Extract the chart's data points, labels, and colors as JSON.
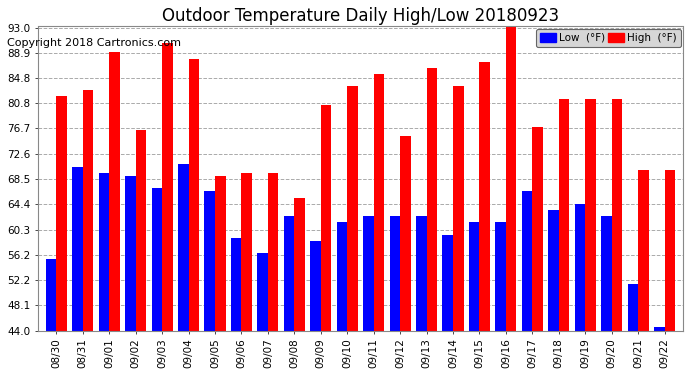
{
  "title": "Outdoor Temperature Daily High/Low 20180923",
  "copyright": "Copyright 2018 Cartronics.com",
  "dates": [
    "08/30",
    "08/31",
    "09/01",
    "09/02",
    "09/03",
    "09/04",
    "09/05",
    "09/06",
    "09/07",
    "09/08",
    "09/09",
    "09/10",
    "09/11",
    "09/12",
    "09/13",
    "09/14",
    "09/15",
    "09/16",
    "09/17",
    "09/18",
    "09/19",
    "09/20",
    "09/21",
    "09/22"
  ],
  "highs": [
    82.0,
    83.0,
    89.0,
    76.5,
    90.5,
    88.0,
    69.0,
    69.5,
    69.5,
    65.5,
    80.5,
    83.5,
    85.5,
    75.5,
    86.5,
    83.5,
    87.5,
    93.5,
    77.0,
    81.5,
    81.5,
    81.5,
    70.0,
    70.0
  ],
  "lows": [
    55.5,
    70.5,
    69.5,
    69.0,
    67.0,
    71.0,
    66.5,
    59.0,
    56.5,
    62.5,
    58.5,
    61.5,
    62.5,
    62.5,
    62.5,
    59.5,
    61.5,
    61.5,
    66.5,
    63.5,
    64.5,
    62.5,
    51.5,
    44.5
  ],
  "high_color": "#ff0000",
  "low_color": "#0000ff",
  "bg_color": "#ffffff",
  "grid_color": "#aaaaaa",
  "ylim_min": 44.0,
  "ylim_max": 93.0,
  "yticks": [
    44.0,
    48.1,
    52.2,
    56.2,
    60.3,
    64.4,
    68.5,
    72.6,
    76.7,
    80.8,
    84.8,
    88.9,
    93.0
  ],
  "legend_low_label": "Low  (°F)",
  "legend_high_label": "High  (°F)",
  "title_fontsize": 12,
  "copyright_fontsize": 8,
  "tick_fontsize": 7.5,
  "bar_width": 0.4
}
